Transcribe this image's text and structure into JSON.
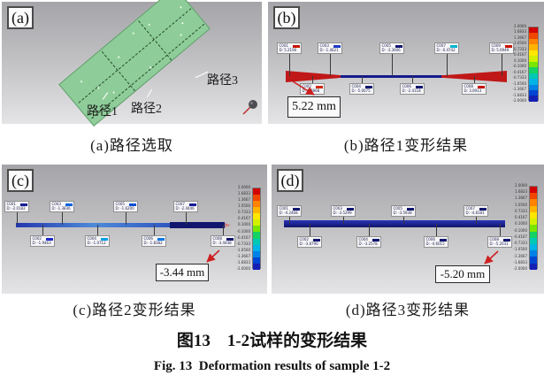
{
  "figure": {
    "caption_zh": "图13　1-2试样的变形结果",
    "caption_en": "Fig. 13  Deformation results of sample 1-2"
  },
  "panels": {
    "a": {
      "letter": "(a)",
      "caption": "(a)路径选取",
      "path1_label": "路径1",
      "path2_label": "路径2",
      "path3_label": "路径3"
    },
    "b": {
      "letter": "(b)",
      "caption": "(b)路径1变形结果",
      "callout": "5.22 mm",
      "points_top": [
        {
          "id": "C001",
          "value": "D: 5.2190",
          "chip": "#c81400"
        },
        {
          "id": "C003",
          "value": "D: -1.4621",
          "chip": "#1e3cc8"
        },
        {
          "id": "C005",
          "value": "D: -3.3006",
          "chip": "#10166e"
        },
        {
          "id": "C007",
          "value": "D: -0.4742",
          "chip": "#00b4d2"
        },
        {
          "id": "C009",
          "value": "D: 5.0949",
          "chip": "#c81400"
        }
      ],
      "points_bottom": [
        {
          "id": "C002",
          "value": "D: 1.8868",
          "chip": "#d22800"
        },
        {
          "id": "C004",
          "value": "D: -5.0075",
          "chip": "#10166e"
        },
        {
          "id": "C006",
          "value": "D: -2.4118",
          "chip": "#10166e"
        },
        {
          "id": "C008",
          "value": "D: 3.0913",
          "chip": "#c81400"
        }
      ]
    },
    "c": {
      "letter": "(c)",
      "caption": "(c)路径2变形结果",
      "callout": "-3.44 mm",
      "points_top": [
        {
          "id": "C001",
          "value": "D: -2.0182",
          "chip": "#141e96"
        },
        {
          "id": "C003",
          "value": "D: -1.3836",
          "chip": "#0064dc"
        },
        {
          "id": "C005",
          "value": "D: -1.6200",
          "chip": "#0050d2"
        },
        {
          "id": "C007",
          "value": "D: -2.4446",
          "chip": "#141e96"
        }
      ],
      "points_bottom": [
        {
          "id": "C002",
          "value": "D: -1.9463",
          "chip": "#1e28c8"
        },
        {
          "id": "C004",
          "value": "D: -1.0712",
          "chip": "#00a0e6"
        },
        {
          "id": "C006",
          "value": "D: -1.8382",
          "chip": "#0a78e6"
        },
        {
          "id": "C008",
          "value": "D: -3.4448",
          "chip": "#10166e"
        }
      ]
    },
    "d": {
      "letter": "(d)",
      "caption": "(d)路径3变形结果",
      "callout": "-5.20 mm",
      "points_top": [
        {
          "id": "C001",
          "value": "D: -4.2468",
          "chip": "#10166e"
        },
        {
          "id": "C003",
          "value": "D: -3.5299",
          "chip": "#10166e"
        },
        {
          "id": "C005",
          "value": "D: -3.5938",
          "chip": "#10166e"
        },
        {
          "id": "C007",
          "value": "D: -4.8181",
          "chip": "#10166e"
        }
      ],
      "points_bottom": [
        {
          "id": "C002",
          "value": "D: -3.8790",
          "chip": "#10166e"
        },
        {
          "id": "C004",
          "value": "D: -3.2578",
          "chip": "#10166e"
        },
        {
          "id": "C006",
          "value": "D: -4.6015",
          "chip": "#10166e"
        },
        {
          "id": "C008",
          "value": "D: -5.2031",
          "chip": "#10166e"
        }
      ]
    }
  },
  "colorbar": {
    "labels": [
      "2.0000",
      "1.6833",
      "1.3667",
      "1.0500",
      "0.7333",
      "0.4167",
      "0.1000",
      "-0.1000",
      "-0.4167",
      "-0.7333",
      "-1.0500",
      "-1.3667",
      "-1.6833",
      "-2.0000"
    ],
    "colors": [
      "#d20000",
      "#f04600",
      "#ff8200",
      "#ffb400",
      "#ffe600",
      "#d2f000",
      "#78e600",
      "#14d264",
      "#00c8b4",
      "#00b4e6",
      "#0082e6",
      "#0046d2",
      "#1420b4"
    ]
  }
}
